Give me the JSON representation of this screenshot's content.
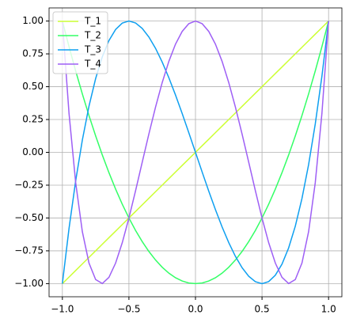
{
  "chart_data": {
    "type": "line",
    "x": [
      -1,
      -0.95,
      -0.9,
      -0.85,
      -0.8,
      -0.75,
      -0.7,
      -0.65,
      -0.6,
      -0.55,
      -0.5,
      -0.45,
      -0.4,
      -0.35,
      -0.3,
      -0.25,
      -0.2,
      -0.15,
      -0.1,
      -0.05,
      0,
      0.05,
      0.1,
      0.15,
      0.2,
      0.25,
      0.3,
      0.35,
      0.4,
      0.45,
      0.5,
      0.55,
      0.6,
      0.65,
      0.7,
      0.75,
      0.8,
      0.85,
      0.9,
      0.95,
      1
    ],
    "series": [
      {
        "name": "T_1",
        "color": "#ccff33",
        "values": [
          -1,
          -0.95,
          -0.9,
          -0.85,
          -0.8,
          -0.75,
          -0.7,
          -0.65,
          -0.6,
          -0.55,
          -0.5,
          -0.45,
          -0.4,
          -0.35,
          -0.3,
          -0.25,
          -0.2,
          -0.15,
          -0.1,
          -0.05,
          0,
          0.05,
          0.1,
          0.15,
          0.2,
          0.25,
          0.3,
          0.35,
          0.4,
          0.45,
          0.5,
          0.55,
          0.6,
          0.65,
          0.7,
          0.75,
          0.8,
          0.85,
          0.9,
          0.95,
          1
        ]
      },
      {
        "name": "T_2",
        "color": "#33ff66",
        "values": [
          1,
          0.805,
          0.62,
          0.445,
          0.28,
          0.125,
          -0.02,
          -0.155,
          -0.28,
          -0.395,
          -0.5,
          -0.595,
          -0.68,
          -0.755,
          -0.82,
          -0.875,
          -0.92,
          -0.955,
          -0.98,
          -0.995,
          -1,
          -0.995,
          -0.98,
          -0.955,
          -0.92,
          -0.875,
          -0.82,
          -0.755,
          -0.68,
          -0.595,
          -0.5,
          -0.395,
          -0.28,
          -0.155,
          -0.02,
          0.125,
          0.28,
          0.445,
          0.62,
          0.805,
          1
        ]
      },
      {
        "name": "T_3",
        "color": "#0d9ff0",
        "values": [
          -1,
          -0.5795,
          -0.216,
          0.0935,
          0.352,
          0.5625,
          0.728,
          0.8515,
          0.936,
          0.9845,
          1,
          0.9855,
          0.944,
          0.8785,
          0.792,
          0.6875,
          0.568,
          0.4365,
          0.296,
          0.1495,
          0,
          -0.1495,
          -0.296,
          -0.4365,
          -0.568,
          -0.6875,
          -0.792,
          -0.8785,
          -0.944,
          -0.9855,
          -1,
          -0.9845,
          -0.936,
          -0.8515,
          -0.728,
          -0.5625,
          -0.352,
          -0.0935,
          0.216,
          0.5795,
          1
        ]
      },
      {
        "name": "T_4",
        "color": "#9e5ff5",
        "values": [
          1,
          0.29605,
          -0.2312,
          -0.60395,
          -0.8432,
          -0.96875,
          -0.9992,
          -0.95195,
          -0.8432,
          -0.68795,
          -0.5,
          -0.29195,
          -0.0752,
          0.14005,
          0.3448,
          0.53125,
          0.6928,
          0.82405,
          0.9208,
          0.98005,
          1,
          0.98005,
          0.9208,
          0.82405,
          0.6928,
          0.53125,
          0.3448,
          0.14005,
          -0.0752,
          -0.29195,
          -0.5,
          -0.68795,
          -0.8432,
          -0.95195,
          -0.9992,
          -0.96875,
          -0.8432,
          -0.60395,
          -0.2312,
          0.29605,
          1
        ]
      }
    ],
    "xlim": [
      -1.1,
      1.1
    ],
    "ylim": [
      -1.1,
      1.1
    ],
    "xticks": [
      {
        "value": -1,
        "label": "−1.0"
      },
      {
        "value": -0.5,
        "label": "−0.5"
      },
      {
        "value": 0,
        "label": "0.0"
      },
      {
        "value": 0.5,
        "label": "0.5"
      },
      {
        "value": 1,
        "label": "1.0"
      }
    ],
    "yticks": [
      {
        "value": -1,
        "label": "−1.00"
      },
      {
        "value": -0.75,
        "label": "−0.75"
      },
      {
        "value": -0.5,
        "label": "−0.50"
      },
      {
        "value": -0.25,
        "label": "−0.25"
      },
      {
        "value": 0,
        "label": "0.00"
      },
      {
        "value": 0.25,
        "label": "0.25"
      },
      {
        "value": 0.5,
        "label": "0.50"
      },
      {
        "value": 0.75,
        "label": "0.75"
      },
      {
        "value": 1,
        "label": "1.00"
      }
    ],
    "grid": true,
    "legend": "upper-left"
  }
}
